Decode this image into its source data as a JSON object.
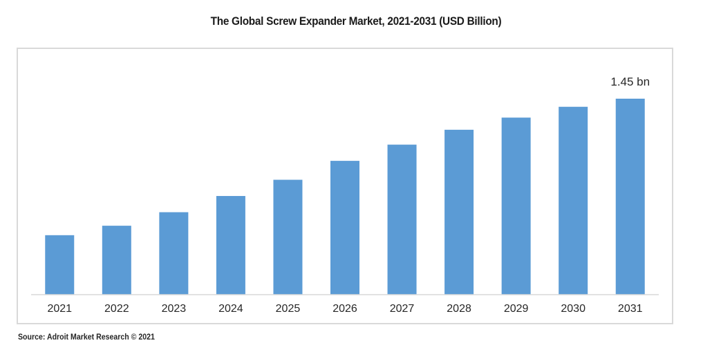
{
  "chart_data": {
    "type": "bar",
    "title": "The Global Screw Expander Market, 2021-2031 (USD Billion)",
    "xlabel": "",
    "ylabel": "",
    "categories": [
      "2021",
      "2022",
      "2023",
      "2024",
      "2025",
      "2026",
      "2027",
      "2028",
      "2029",
      "2030",
      "2031"
    ],
    "values": [
      0.44,
      0.51,
      0.61,
      0.73,
      0.85,
      0.99,
      1.11,
      1.22,
      1.31,
      1.39,
      1.45
    ],
    "ylim": [
      0,
      1.45
    ],
    "grid": false,
    "legend": "none",
    "annotations": [
      {
        "category": "2031",
        "text": "1.45 bn"
      }
    ],
    "bar_color": "#5B9BD5"
  },
  "source": "Source: Adroit Market Research © 2021"
}
